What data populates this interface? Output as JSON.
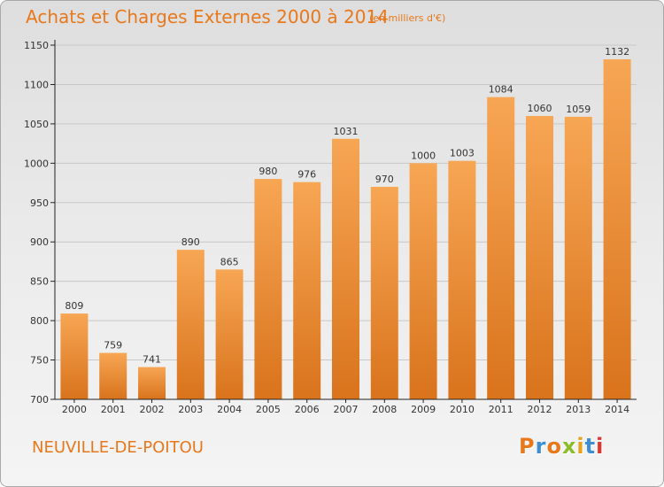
{
  "header": {
    "title": "Achats et Charges Externes 2000 à 2014",
    "subtitle": "(en milliers d'€)"
  },
  "footer": {
    "town": "NEUVILLE-DE-POITOU",
    "logo_text": "Proxiti"
  },
  "colors": {
    "title": "#e8781c",
    "bar_light": "#f7a654",
    "bar_dark": "#d9731c",
    "grid": "#c8c8c8",
    "axis": "#222222"
  },
  "chart_data": {
    "type": "bar",
    "title": "Achats et Charges Externes 2000 à 2014",
    "subtitle": "(en milliers d'€)",
    "categories": [
      "2000",
      "2001",
      "2002",
      "2003",
      "2004",
      "2005",
      "2006",
      "2007",
      "2008",
      "2009",
      "2010",
      "2011",
      "2012",
      "2013",
      "2014"
    ],
    "values": [
      809,
      759,
      741,
      890,
      865,
      980,
      976,
      1031,
      970,
      1000,
      1003,
      1084,
      1060,
      1059,
      1132
    ],
    "ylim": [
      700,
      1150
    ],
    "yticks": [
      700,
      750,
      800,
      850,
      900,
      950,
      1000,
      1050,
      1100,
      1150
    ],
    "grid": true,
    "xlabel": "",
    "ylabel": ""
  }
}
